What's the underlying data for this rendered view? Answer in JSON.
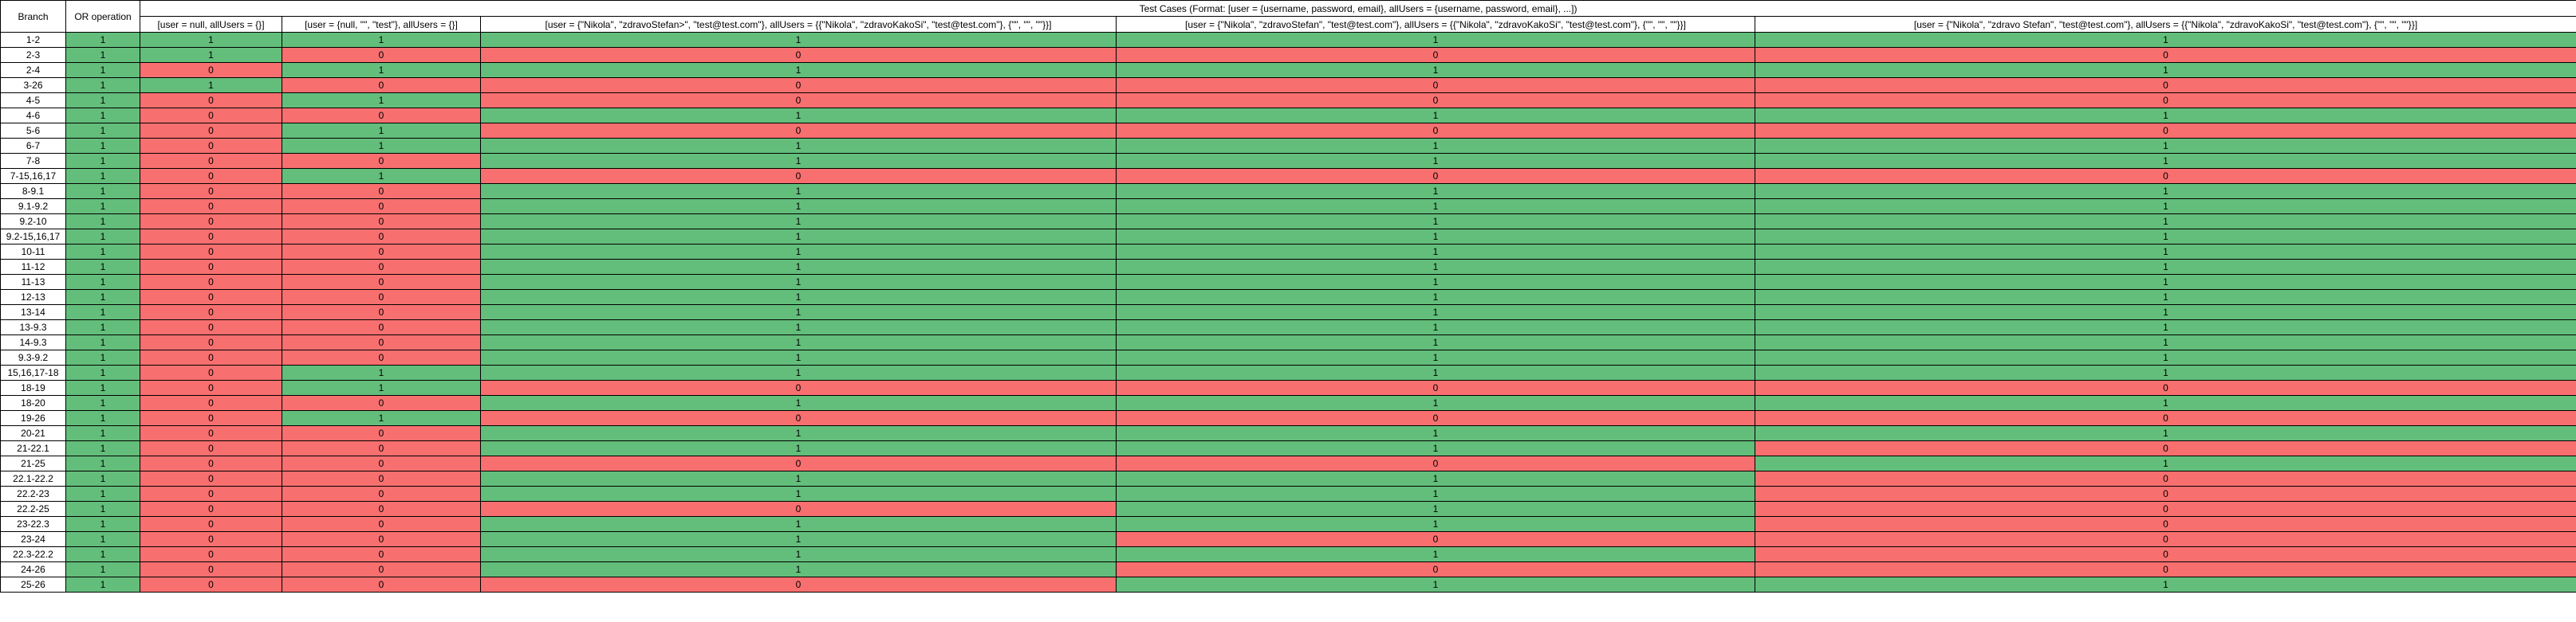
{
  "headers": {
    "branch": "Branch",
    "or_operation": "OR operation",
    "test_cases_title": "Test Cases (Format: [user = {username, password, email}, allUsers = {username, password, email}, ...])",
    "cases": [
      "[user = null, allUsers = {}]",
      "[user = {null, \"\", \"test\"}, allUsers = {}]",
      "[user = {\"Nikola\", \"zdravoStefan>\", \"test@test.com\"}, allUsers = {{\"Nikola\", \"zdravoKakoSi\", \"test@test.com\"}, {\"\", \"\", \"\"}}]",
      "[user = {\"Nikola\", \"zdravoStefan\", \"test@test.com\"}, allUsers = {{\"Nikola\", \"zdravoKakoSi\", \"test@test.com\"}, {\"\", \"\", \"\"}}]",
      "[user = {\"Nikola\", \"zdravo Stefan\", \"test@test.com\"}, allUsers = {{\"Nikola\", \"zdravoKakoSi\", \"test@test.com\"}, {\"\", \"\", \"\"}}]"
    ]
  },
  "colors": {
    "green": "#63be7b",
    "red": "#f86f6f"
  },
  "rows": [
    {
      "branch": "1-2",
      "or": "1",
      "cases": [
        "1",
        "1",
        "1",
        "1",
        "1"
      ]
    },
    {
      "branch": "2-3",
      "or": "1",
      "cases": [
        "1",
        "0",
        "0",
        "0",
        "0"
      ]
    },
    {
      "branch": "2-4",
      "or": "1",
      "cases": [
        "0",
        "1",
        "1",
        "1",
        "1"
      ]
    },
    {
      "branch": "3-26",
      "or": "1",
      "cases": [
        "1",
        "0",
        "0",
        "0",
        "0"
      ]
    },
    {
      "branch": "4-5",
      "or": "1",
      "cases": [
        "0",
        "1",
        "0",
        "0",
        "0"
      ]
    },
    {
      "branch": "4-6",
      "or": "1",
      "cases": [
        "0",
        "0",
        "1",
        "1",
        "1"
      ]
    },
    {
      "branch": "5-6",
      "or": "1",
      "cases": [
        "0",
        "1",
        "0",
        "0",
        "0"
      ]
    },
    {
      "branch": "6-7",
      "or": "1",
      "cases": [
        "0",
        "1",
        "1",
        "1",
        "1"
      ]
    },
    {
      "branch": "7-8",
      "or": "1",
      "cases": [
        "0",
        "0",
        "1",
        "1",
        "1"
      ]
    },
    {
      "branch": "7-15,16,17",
      "or": "1",
      "cases": [
        "0",
        "1",
        "0",
        "0",
        "0"
      ]
    },
    {
      "branch": "8-9.1",
      "or": "1",
      "cases": [
        "0",
        "0",
        "1",
        "1",
        "1"
      ]
    },
    {
      "branch": "9.1-9.2",
      "or": "1",
      "cases": [
        "0",
        "0",
        "1",
        "1",
        "1"
      ]
    },
    {
      "branch": "9.2-10",
      "or": "1",
      "cases": [
        "0",
        "0",
        "1",
        "1",
        "1"
      ]
    },
    {
      "branch": "9.2-15,16,17",
      "or": "1",
      "cases": [
        "0",
        "0",
        "1",
        "1",
        "1"
      ]
    },
    {
      "branch": "10-11",
      "or": "1",
      "cases": [
        "0",
        "0",
        "1",
        "1",
        "1"
      ]
    },
    {
      "branch": "11-12",
      "or": "1",
      "cases": [
        "0",
        "0",
        "1",
        "1",
        "1"
      ]
    },
    {
      "branch": "11-13",
      "or": "1",
      "cases": [
        "0",
        "0",
        "1",
        "1",
        "1"
      ]
    },
    {
      "branch": "12-13",
      "or": "1",
      "cases": [
        "0",
        "0",
        "1",
        "1",
        "1"
      ]
    },
    {
      "branch": "13-14",
      "or": "1",
      "cases": [
        "0",
        "0",
        "1",
        "1",
        "1"
      ]
    },
    {
      "branch": "13-9.3",
      "or": "1",
      "cases": [
        "0",
        "0",
        "1",
        "1",
        "1"
      ]
    },
    {
      "branch": "14-9.3",
      "or": "1",
      "cases": [
        "0",
        "0",
        "1",
        "1",
        "1"
      ]
    },
    {
      "branch": "9.3-9.2",
      "or": "1",
      "cases": [
        "0",
        "0",
        "1",
        "1",
        "1"
      ]
    },
    {
      "branch": "15,16,17-18",
      "or": "1",
      "cases": [
        "0",
        "1",
        "1",
        "1",
        "1"
      ]
    },
    {
      "branch": "18-19",
      "or": "1",
      "cases": [
        "0",
        "1",
        "0",
        "0",
        "0"
      ]
    },
    {
      "branch": "18-20",
      "or": "1",
      "cases": [
        "0",
        "0",
        "1",
        "1",
        "1"
      ]
    },
    {
      "branch": "19-26",
      "or": "1",
      "cases": [
        "0",
        "1",
        "0",
        "0",
        "0"
      ]
    },
    {
      "branch": "20-21",
      "or": "1",
      "cases": [
        "0",
        "0",
        "1",
        "1",
        "1"
      ]
    },
    {
      "branch": "21-22.1",
      "or": "1",
      "cases": [
        "0",
        "0",
        "1",
        "1",
        "0"
      ]
    },
    {
      "branch": "21-25",
      "or": "1",
      "cases": [
        "0",
        "0",
        "0",
        "0",
        "1"
      ]
    },
    {
      "branch": "22.1-22.2",
      "or": "1",
      "cases": [
        "0",
        "0",
        "1",
        "1",
        "0"
      ]
    },
    {
      "branch": "22.2-23",
      "or": "1",
      "cases": [
        "0",
        "0",
        "1",
        "1",
        "0"
      ]
    },
    {
      "branch": "22.2-25",
      "or": "1",
      "cases": [
        "0",
        "0",
        "0",
        "1",
        "0"
      ]
    },
    {
      "branch": "23-22.3",
      "or": "1",
      "cases": [
        "0",
        "0",
        "1",
        "1",
        "0"
      ]
    },
    {
      "branch": "23-24",
      "or": "1",
      "cases": [
        "0",
        "0",
        "1",
        "0",
        "0"
      ]
    },
    {
      "branch": "22.3-22.2",
      "or": "1",
      "cases": [
        "0",
        "0",
        "1",
        "1",
        "0"
      ]
    },
    {
      "branch": "24-26",
      "or": "1",
      "cases": [
        "0",
        "0",
        "1",
        "0",
        "0"
      ]
    },
    {
      "branch": "25-26",
      "or": "1",
      "cases": [
        "0",
        "0",
        "0",
        "1",
        "1"
      ]
    }
  ]
}
